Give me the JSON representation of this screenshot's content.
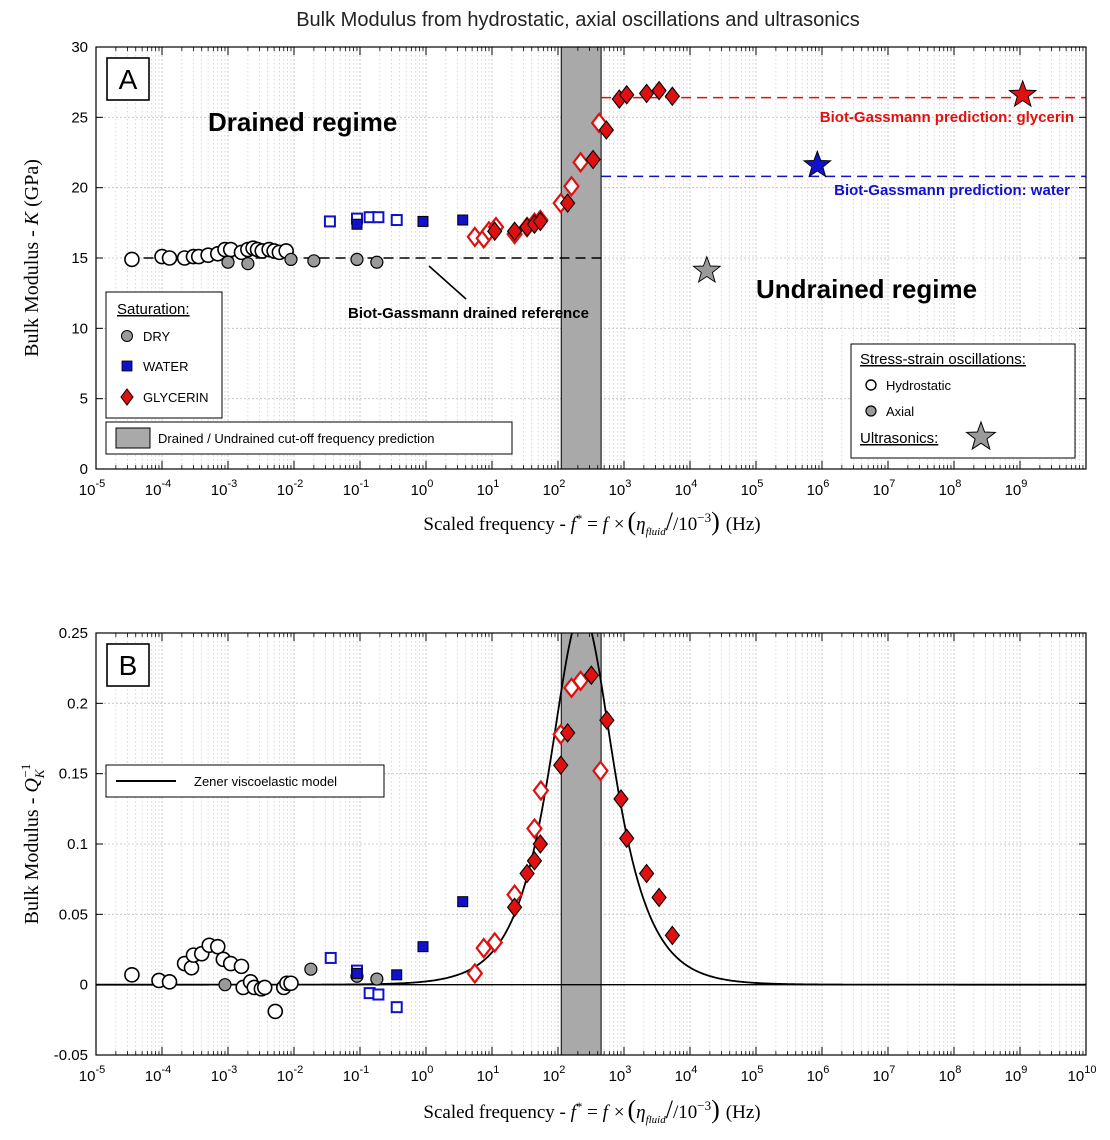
{
  "figure_title": "Bulk Modulus from hydrostatic, axial oscillations and ultrasonics",
  "colors": {
    "dry": "#9a9a9a",
    "water": "#1111cc",
    "glycerin": "#e01010",
    "cutoff_band": "#a9a9a9",
    "grid": "#c8c8c8"
  },
  "chart_data": [
    {
      "type": "scatter",
      "panel_label": "A",
      "xlabel": {
        "prefix": "Scaled frequency - ",
        "expr_f": "f",
        "expr_star": "*",
        "expr_eq": " = ",
        "expr_times": "f ×",
        "expr_eta": "η",
        "expr_fluid": "fluid",
        "expr_div": "/10",
        "expr_exp": "−3",
        "suffix": "(Hz)"
      },
      "ylabel": {
        "prefix": "Bulk Modulus - ",
        "symbol": "K",
        "unit": " (GPa)"
      },
      "x_scale": "log",
      "xlim": [
        1e-05,
        10000000000.0
      ],
      "ylim": [
        0,
        30
      ],
      "yticks": [
        0,
        5,
        10,
        15,
        20,
        25,
        30
      ],
      "ytick_labels": [
        "0",
        "5",
        "10",
        "15",
        "20",
        "25",
        "30"
      ],
      "xticks_exp": [
        -5,
        -4,
        -3,
        -2,
        -1,
        0,
        1,
        2,
        3,
        4,
        5,
        6,
        7,
        8,
        9
      ],
      "cutoff_band": [
        112,
        450
      ],
      "grid": true,
      "annotations": {
        "drained": "Drained regime",
        "undrained": "Undrained regime",
        "drained_ref": "Biot-Gassmann drained reference",
        "bg_glycerin": "Biot-Gassmann prediction: glycerin",
        "bg_water": "Biot-Gassmann prediction: water"
      },
      "reference_lines": {
        "drained": {
          "value": 15.0,
          "x_range": [
            3e-05,
            450
          ]
        },
        "glycerin": {
          "value": 26.4,
          "x_range": [
            450,
            10000000000.0
          ]
        },
        "water": {
          "value": 20.8,
          "x_range": [
            450,
            10000000000.0
          ]
        }
      },
      "legend_saturation": {
        "title": "Saturation:",
        "items": [
          {
            "marker": "circle",
            "label": "DRY"
          },
          {
            "marker": "square",
            "label": "WATER"
          },
          {
            "marker": "diamond",
            "label": "GLYCERIN"
          }
        ],
        "placement": "lower-left"
      },
      "legend_cutoff": {
        "label": "Drained / Undrained cut-off frequency prediction",
        "placement": "bottom-left"
      },
      "legend_method": {
        "title": "Stress-strain oscillations:",
        "items": [
          {
            "marker": "open-circle",
            "label": "Hydrostatic"
          },
          {
            "marker": "filled-circle",
            "label": "Axial"
          }
        ],
        "ultrasonics_label": "Ultrasonics:",
        "placement": "lower-right"
      },
      "series": [
        {
          "fluid": "dry",
          "method": "hydrostatic",
          "points": [
            [
              3.5e-05,
              14.9
            ],
            [
              0.0001,
              15.1
            ],
            [
              0.00013,
              15.0
            ],
            [
              0.00022,
              15.0
            ],
            [
              0.0003,
              15.1
            ],
            [
              0.00036,
              15.1
            ],
            [
              0.0005,
              15.2
            ],
            [
              0.0007,
              15.3
            ],
            [
              0.0009,
              15.6
            ],
            [
              0.0011,
              15.6
            ],
            [
              0.0016,
              15.4
            ],
            [
              0.002,
              15.6
            ],
            [
              0.0024,
              15.7
            ],
            [
              0.0028,
              15.6
            ],
            [
              0.0033,
              15.5
            ],
            [
              0.0042,
              15.6
            ],
            [
              0.005,
              15.5
            ],
            [
              0.006,
              15.4
            ],
            [
              0.0076,
              15.5
            ]
          ]
        },
        {
          "fluid": "dry",
          "method": "axial",
          "points": [
            [
              0.001,
              14.7
            ],
            [
              0.002,
              14.6
            ],
            [
              0.009,
              14.9
            ],
            [
              0.02,
              14.8
            ],
            [
              0.09,
              14.9
            ],
            [
              0.18,
              14.7
            ]
          ]
        },
        {
          "fluid": "water",
          "method": "hydrostatic",
          "points": [
            [
              0.035,
              17.6
            ],
            [
              0.09,
              17.8
            ],
            [
              0.14,
              17.9
            ],
            [
              0.19,
              17.9
            ],
            [
              0.36,
              17.7
            ]
          ]
        },
        {
          "fluid": "water",
          "method": "axial",
          "points": [
            [
              0.09,
              17.4
            ],
            [
              0.9,
              17.6
            ],
            [
              3.6,
              17.7
            ]
          ]
        },
        {
          "fluid": "glycerin",
          "method": "hydrostatic",
          "points": [
            [
              5.5,
              16.5
            ],
            [
              7.5,
              16.4
            ],
            [
              9.0,
              16.9
            ],
            [
              11.5,
              17.2
            ],
            [
              22.0,
              16.7
            ],
            [
              34.0,
              17.2
            ],
            [
              44.0,
              17.5
            ],
            [
              54.0,
              17.7
            ],
            [
              110.0,
              18.9
            ],
            [
              160.0,
              20.1
            ],
            [
              220.0,
              21.8
            ],
            [
              420.0,
              24.6
            ]
          ]
        },
        {
          "fluid": "glycerin",
          "method": "axial",
          "points": [
            [
              11.0,
              16.9
            ],
            [
              22.0,
              16.9
            ],
            [
              34.0,
              17.2
            ],
            [
              44.0,
              17.4
            ],
            [
              54.0,
              17.6
            ],
            [
              140.0,
              18.9
            ],
            [
              340.0,
              22.0
            ],
            [
              540.0,
              24.1
            ],
            [
              850.0,
              26.3
            ],
            [
              1100.0,
              26.6
            ],
            [
              2200.0,
              26.7
            ],
            [
              3400.0,
              26.9
            ],
            [
              5400.0,
              26.5
            ]
          ]
        },
        {
          "fluid": "water",
          "method": "ultrasonics",
          "points": [
            [
              850000.0,
              21.6
            ]
          ]
        },
        {
          "fluid": "glycerin",
          "method": "ultrasonics",
          "points": [
            [
              1100000000.0,
              26.6
            ]
          ]
        },
        {
          "fluid": "dry",
          "method": "ultrasonics",
          "points": [
            [
              18000.0,
              14.1
            ]
          ]
        }
      ]
    },
    {
      "type": "scatter",
      "panel_label": "B",
      "xlabel": {
        "prefix": "Scaled frequency - ",
        "expr_f": "f",
        "expr_star": "*",
        "expr_eq": " = ",
        "expr_times": "f ×",
        "expr_eta": "η",
        "expr_fluid": "fluid",
        "expr_div": "/10",
        "expr_exp": "−3",
        "suffix": "(Hz)"
      },
      "ylabel": {
        "prefix": "Bulk Modulus  -  ",
        "symbol": "Q",
        "sub": "K",
        "sup": "−1"
      },
      "x_scale": "log",
      "xlim": [
        1e-05,
        10000000000.0
      ],
      "ylim": [
        -0.05,
        0.25
      ],
      "yticks": [
        -0.05,
        0,
        0.05,
        0.1,
        0.15,
        0.2,
        0.25
      ],
      "ytick_labels": [
        "-0.05",
        "0",
        "0.05",
        "0.1",
        "0.15",
        "0.2",
        "0.25"
      ],
      "xticks_exp": [
        -5,
        -4,
        -3,
        -2,
        -1,
        0,
        1,
        2,
        3,
        4,
        5,
        6,
        7,
        8,
        9,
        10
      ],
      "cutoff_band": [
        112,
        450
      ],
      "grid": true,
      "zero_line": 0,
      "model": {
        "name": "Zener viscoelastic model",
        "peak_freq": 230,
        "peak_value": 0.265
      },
      "legend_model": {
        "label": "Zener viscoelastic model",
        "placement": "upper-left"
      },
      "series": [
        {
          "fluid": "dry",
          "method": "hydrostatic",
          "points": [
            [
              3.5e-05,
              0.007
            ],
            [
              9e-05,
              0.003
            ],
            [
              0.00013,
              0.002
            ],
            [
              0.00022,
              0.015
            ],
            [
              0.00028,
              0.012
            ],
            [
              0.0003,
              0.021
            ],
            [
              0.0004,
              0.022
            ],
            [
              0.00052,
              0.028
            ],
            [
              0.0007,
              0.027
            ],
            [
              0.00085,
              0.018
            ],
            [
              0.0011,
              0.015
            ],
            [
              0.0016,
              0.013
            ],
            [
              0.0017,
              -0.002
            ],
            [
              0.0022,
              0.002
            ],
            [
              0.0025,
              -0.002
            ],
            [
              0.0032,
              -0.003
            ],
            [
              0.0036,
              -0.002
            ],
            [
              0.0052,
              -0.019
            ],
            [
              0.007,
              -0.002
            ],
            [
              0.0078,
              0.001
            ],
            [
              0.009,
              0.001
            ]
          ]
        },
        {
          "fluid": "dry",
          "method": "axial",
          "points": [
            [
              0.0009,
              0.0
            ],
            [
              0.018,
              0.011
            ],
            [
              0.09,
              0.006
            ],
            [
              0.18,
              0.004
            ]
          ]
        },
        {
          "fluid": "water",
          "method": "hydrostatic",
          "points": [
            [
              0.036,
              0.019
            ],
            [
              0.09,
              0.01
            ],
            [
              0.14,
              -0.006
            ],
            [
              0.19,
              -0.007
            ],
            [
              0.36,
              -0.016
            ]
          ]
        },
        {
          "fluid": "water",
          "method": "axial",
          "points": [
            [
              0.09,
              0.008
            ],
            [
              0.36,
              0.007
            ],
            [
              0.9,
              0.027
            ],
            [
              3.6,
              0.059
            ]
          ]
        },
        {
          "fluid": "glycerin",
          "method": "hydrostatic",
          "points": [
            [
              5.5,
              0.008
            ],
            [
              7.5,
              0.026
            ],
            [
              11.0,
              0.03
            ],
            [
              22.0,
              0.064
            ],
            [
              44.0,
              0.111
            ],
            [
              55.0,
              0.138
            ],
            [
              110.0,
              0.178
            ],
            [
              160.0,
              0.211
            ],
            [
              220.0,
              0.216
            ],
            [
              440.0,
              0.152
            ]
          ]
        },
        {
          "fluid": "glycerin",
          "method": "axial",
          "points": [
            [
              22.0,
              0.055
            ],
            [
              34.0,
              0.079
            ],
            [
              44.0,
              0.088
            ],
            [
              54.0,
              0.1
            ],
            [
              110.0,
              0.156
            ],
            [
              140.0,
              0.179
            ],
            [
              320.0,
              0.22
            ],
            [
              550.0,
              0.188
            ],
            [
              900.0,
              0.132
            ],
            [
              1100.0,
              0.104
            ],
            [
              2200.0,
              0.079
            ],
            [
              3400.0,
              0.062
            ],
            [
              5400.0,
              0.035
            ]
          ]
        }
      ]
    }
  ]
}
